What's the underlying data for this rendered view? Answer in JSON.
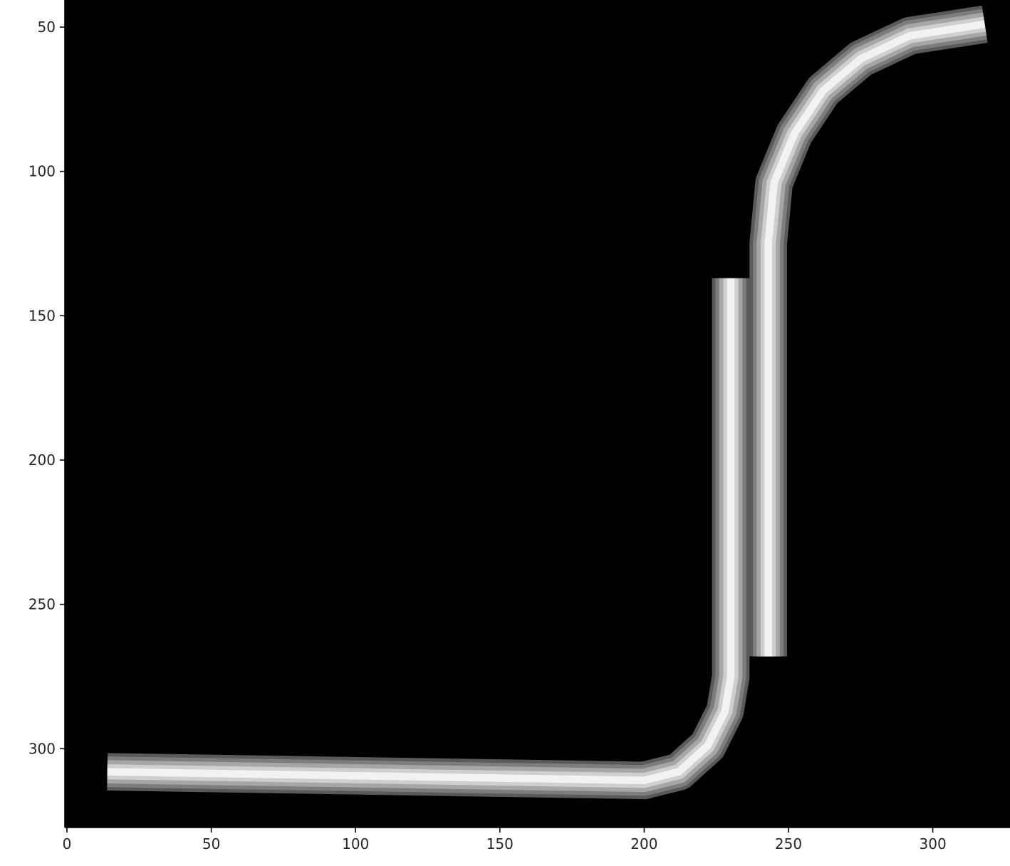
{
  "image": {
    "description_kind": "grayscale rendered tube / vessel image",
    "background_color": "#000000",
    "tube_colors": {
      "center": "#f2f2f2",
      "mid": "#a6a6a6",
      "edge": "#5a5a5a"
    },
    "xlim": [
      -0.5,
      326.5
    ],
    "ylim": [
      327.5,
      40.5
    ],
    "xticks": [
      0,
      50,
      100,
      150,
      200,
      250,
      300
    ],
    "yticks": [
      50,
      100,
      150,
      200,
      250,
      300
    ],
    "tubes": [
      {
        "name": "long-bent-tube",
        "width": 13,
        "path": [
          [
            14,
            308
          ],
          [
            200,
            311
          ],
          [
            212,
            308
          ],
          [
            222,
            299
          ],
          [
            228,
            287
          ],
          [
            230,
            275
          ],
          [
            230,
            137
          ]
        ]
      },
      {
        "name": "s-curve-tube",
        "width": 13,
        "path": [
          [
            243,
            268
          ],
          [
            243,
            125
          ],
          [
            245,
            104
          ],
          [
            252,
            87
          ],
          [
            262,
            72
          ],
          [
            275,
            61
          ],
          [
            292,
            53
          ],
          [
            318,
            49
          ]
        ]
      }
    ]
  }
}
